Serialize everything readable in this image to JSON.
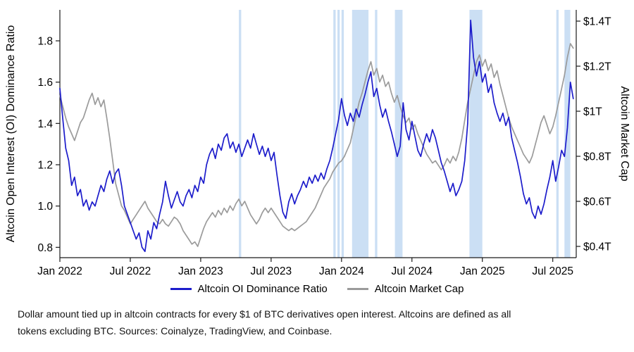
{
  "chart_data": {
    "type": "line",
    "x_axis": {
      "tick_labels": [
        "Jan 2022",
        "Jul 2022",
        "Jan 2023",
        "Jul 2023",
        "Jan 2024",
        "Jul 2024",
        "Jan 2025",
        "Jul 2025"
      ],
      "tick_months": [
        0,
        6,
        12,
        18,
        24,
        30,
        36,
        42
      ],
      "range_months": [
        0,
        44
      ]
    },
    "left_axis": {
      "label": "Altcoin Open Interest (OI) Dominance Ratio",
      "tick_labels": [
        "0.8",
        "1.0",
        "1.2",
        "1.4",
        "1.6",
        "1.8"
      ],
      "tick_values": [
        0.8,
        1.0,
        1.2,
        1.4,
        1.6,
        1.8
      ],
      "range": [
        0.75,
        1.95
      ]
    },
    "right_axis": {
      "label": "Altcoin Market Cap",
      "tick_labels": [
        "$0.4T",
        "$0.6T",
        "$0.8T",
        "$1T",
        "$1.2T",
        "$1.4T"
      ],
      "tick_values": [
        0.4,
        0.6,
        0.8,
        1.0,
        1.2,
        1.4
      ],
      "range": [
        0.35,
        1.45
      ]
    },
    "grid": false,
    "legend_position": "bottom-center",
    "highlight_color": "#cbdff4",
    "highlight_bands": [
      [
        15.25,
        15.45
      ],
      [
        23.3,
        23.5
      ],
      [
        23.65,
        23.85
      ],
      [
        24.0,
        24.2
      ],
      [
        24.9,
        26.3
      ],
      [
        26.85,
        27.05
      ],
      [
        28.55,
        29.2
      ],
      [
        34.9,
        36.0
      ],
      [
        42.3,
        42.5
      ],
      [
        43.0,
        43.5
      ]
    ],
    "series": [
      {
        "name": "Altcoin OI Dominance Ratio",
        "color": "#1c1ccb",
        "axis": "left",
        "x_start": 0,
        "x_step": 0.25,
        "values": [
          1.57,
          1.42,
          1.28,
          1.22,
          1.1,
          1.14,
          1.05,
          1.08,
          1.0,
          1.03,
          0.98,
          1.02,
          1.0,
          1.05,
          1.1,
          1.07,
          1.13,
          1.17,
          1.11,
          1.16,
          1.18,
          1.1,
          1.0,
          0.96,
          0.92,
          0.88,
          0.84,
          0.87,
          0.8,
          0.78,
          0.88,
          0.84,
          0.92,
          0.89,
          0.96,
          1.02,
          1.12,
          1.05,
          0.99,
          1.03,
          1.07,
          1.02,
          1.0,
          1.05,
          1.08,
          1.04,
          1.1,
          1.07,
          1.14,
          1.11,
          1.2,
          1.25,
          1.28,
          1.23,
          1.3,
          1.27,
          1.33,
          1.35,
          1.28,
          1.31,
          1.26,
          1.3,
          1.24,
          1.28,
          1.32,
          1.28,
          1.35,
          1.3,
          1.25,
          1.29,
          1.24,
          1.28,
          1.22,
          1.26,
          1.15,
          1.05,
          0.97,
          0.94,
          1.02,
          1.06,
          1.01,
          1.05,
          1.08,
          1.12,
          1.09,
          1.14,
          1.11,
          1.15,
          1.12,
          1.16,
          1.13,
          1.18,
          1.22,
          1.28,
          1.35,
          1.42,
          1.52,
          1.44,
          1.39,
          1.45,
          1.41,
          1.47,
          1.43,
          1.49,
          1.54,
          1.6,
          1.65,
          1.53,
          1.57,
          1.49,
          1.43,
          1.47,
          1.41,
          1.36,
          1.3,
          1.24,
          1.29,
          1.5,
          1.37,
          1.32,
          1.41,
          1.34,
          1.27,
          1.24,
          1.3,
          1.35,
          1.31,
          1.37,
          1.33,
          1.27,
          1.21,
          1.17,
          1.12,
          1.07,
          1.11,
          1.05,
          1.08,
          1.12,
          1.22,
          1.4,
          1.9,
          1.72,
          1.63,
          1.7,
          1.6,
          1.64,
          1.55,
          1.59,
          1.5,
          1.45,
          1.41,
          1.45,
          1.39,
          1.43,
          1.33,
          1.27,
          1.21,
          1.14,
          1.06,
          1.01,
          1.04,
          0.97,
          0.94,
          1.0,
          0.96,
          1.01,
          1.08,
          1.14,
          1.22,
          1.12,
          1.19,
          1.27,
          1.24,
          1.38,
          1.6,
          1.52
        ]
      },
      {
        "name": "Altcoin Market Cap",
        "color": "#9b9b9b",
        "axis": "right",
        "x_start": 0,
        "x_step": 0.25,
        "values": [
          1.07,
          1.02,
          0.97,
          0.93,
          0.9,
          0.87,
          0.91,
          0.95,
          0.97,
          1.01,
          1.05,
          1.08,
          1.03,
          1.06,
          1.02,
          1.05,
          0.97,
          0.88,
          0.78,
          0.68,
          0.63,
          0.58,
          0.56,
          0.53,
          0.5,
          0.52,
          0.54,
          0.56,
          0.58,
          0.6,
          0.57,
          0.55,
          0.53,
          0.51,
          0.5,
          0.52,
          0.5,
          0.49,
          0.51,
          0.53,
          0.52,
          0.5,
          0.47,
          0.45,
          0.43,
          0.41,
          0.42,
          0.4,
          0.44,
          0.48,
          0.51,
          0.53,
          0.55,
          0.53,
          0.56,
          0.54,
          0.57,
          0.55,
          0.58,
          0.56,
          0.59,
          0.61,
          0.58,
          0.6,
          0.57,
          0.54,
          0.52,
          0.5,
          0.52,
          0.55,
          0.57,
          0.55,
          0.57,
          0.55,
          0.53,
          0.51,
          0.49,
          0.48,
          0.47,
          0.48,
          0.47,
          0.48,
          0.49,
          0.5,
          0.51,
          0.53,
          0.55,
          0.57,
          0.6,
          0.63,
          0.66,
          0.68,
          0.7,
          0.73,
          0.75,
          0.77,
          0.78,
          0.8,
          0.83,
          0.86,
          0.92,
          0.98,
          1.04,
          1.08,
          1.13,
          1.18,
          1.22,
          1.16,
          1.19,
          1.13,
          1.16,
          1.11,
          1.13,
          1.08,
          1.04,
          1.07,
          1.02,
          0.98,
          0.95,
          0.97,
          0.92,
          0.94,
          0.9,
          0.87,
          0.84,
          0.81,
          0.79,
          0.77,
          0.78,
          0.76,
          0.74,
          0.76,
          0.79,
          0.77,
          0.8,
          0.78,
          0.82,
          0.88,
          0.96,
          1.04,
          1.1,
          1.16,
          1.22,
          1.25,
          1.2,
          1.23,
          1.18,
          1.21,
          1.15,
          1.18,
          1.12,
          1.07,
          1.02,
          0.97,
          0.93,
          0.9,
          0.87,
          0.84,
          0.81,
          0.79,
          0.77,
          0.8,
          0.85,
          0.9,
          0.95,
          0.98,
          0.94,
          0.9,
          0.93,
          0.98,
          1.04,
          1.1,
          1.16,
          1.24,
          1.3,
          1.28
        ]
      }
    ],
    "caption_lines": [
      "Dollar amount tied up in altcoin contracts for every $1 of BTC derivatives open interest. Altcoins are defined as all",
      "tokens excluding BTC. Sources: Coinalyze, TradingView, and Coinbase."
    ]
  }
}
